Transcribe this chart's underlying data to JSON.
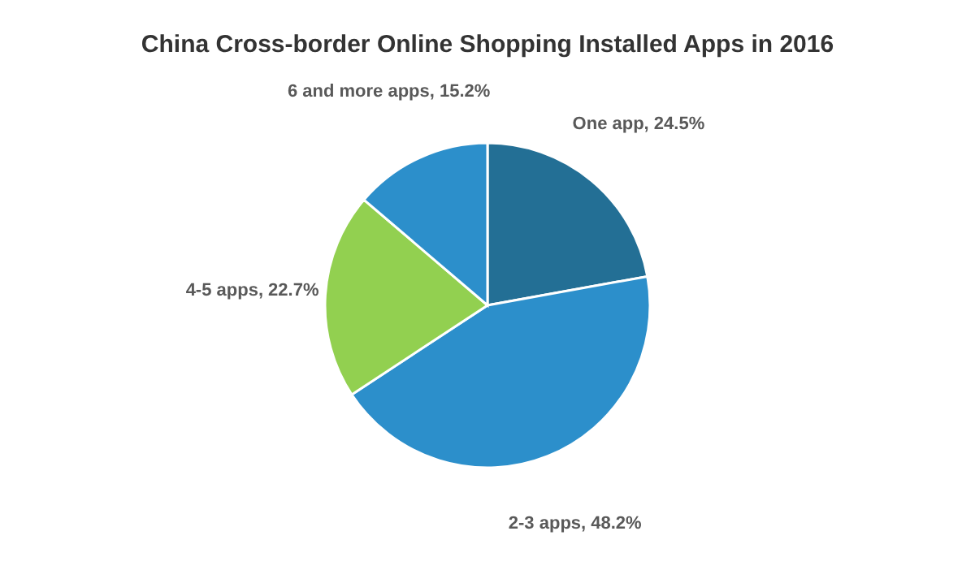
{
  "chart_data": {
    "type": "pie",
    "title": "China Cross-border Online Shopping Installed Apps in 2016",
    "categories": [
      "One app",
      "2-3 apps",
      "4-5 apps",
      "6 and more apps"
    ],
    "values": [
      24.5,
      48.2,
      22.7,
      15.2
    ],
    "value_labels": [
      "24.5%",
      "48.2%",
      "22.7%",
      "15.2%"
    ],
    "colors": [
      "#236f95",
      "#2c8fcb",
      "#92d050",
      "#2c8fcb"
    ],
    "legend": false
  }
}
